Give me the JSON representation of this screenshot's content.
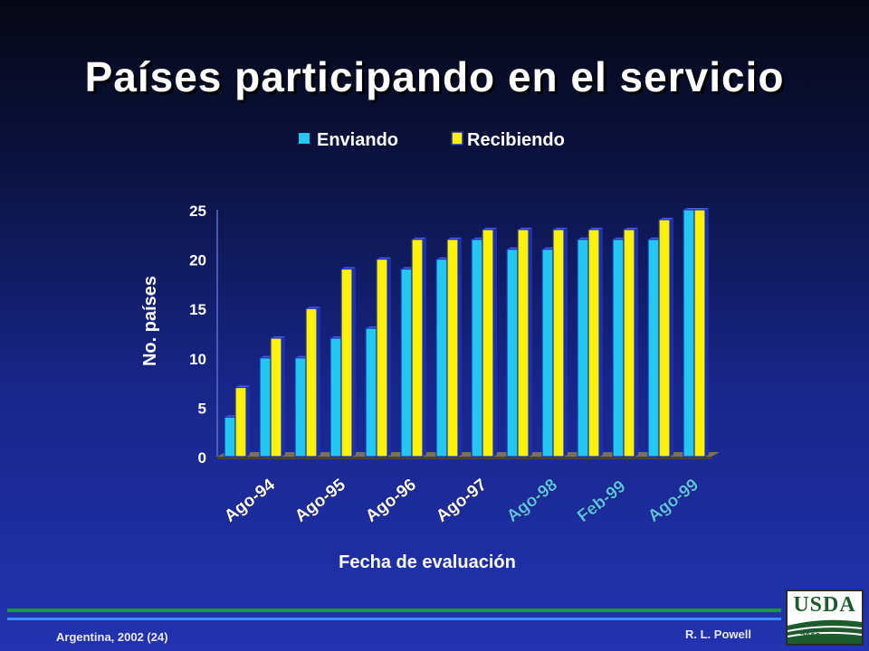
{
  "slide": {
    "title": "Países participando en el servicio",
    "footer_left": "Argentina, 2002 (24)",
    "footer_right": "R. L. Powell",
    "logo_text": "USDA",
    "logo_year": "2002"
  },
  "colors": {
    "enviando": "#22c8f0",
    "recibiendo": "#fff200",
    "axis_text": "#ffffff",
    "highlight_text": "#5fc0f0",
    "footer_line_green": "#1f9a3a",
    "footer_line_blue": "#2f7fff"
  },
  "chart_data": {
    "type": "bar",
    "title": "",
    "xlabel": "Fecha de evaluación",
    "ylabel": "No. países",
    "ylim": [
      0,
      25
    ],
    "yticks": [
      0,
      5,
      10,
      15,
      20,
      25
    ],
    "legend_position": "top",
    "grid": false,
    "categories": [
      "Ago-94",
      "",
      "Ago-95",
      "",
      "Ago-96",
      "",
      "Ago-97",
      "",
      "Ago-98",
      "",
      "Feb-99",
      "",
      "Ago-99",
      ""
    ],
    "category_label_colors": [
      "white",
      "white",
      "white",
      "white",
      "white",
      "white",
      "white",
      "white",
      "light-blue",
      "light-blue",
      "light-blue",
      "light-blue",
      "light-blue",
      "light-blue"
    ],
    "series": [
      {
        "name": "Enviando",
        "values": [
          4,
          10,
          10,
          12,
          13,
          19,
          20,
          22,
          21,
          21,
          22,
          22,
          22,
          25
        ]
      },
      {
        "name": "Recibiendo",
        "values": [
          7,
          12,
          15,
          19,
          20,
          22,
          22,
          23,
          23,
          23,
          23,
          23,
          24,
          25
        ]
      }
    ]
  }
}
